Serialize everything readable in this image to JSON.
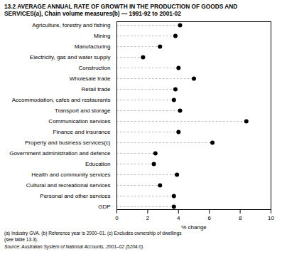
{
  "chart_data": {
    "type": "lollipop",
    "orientation": "horizontal",
    "title": "13.2  AVERAGE ANNUAL RATE OF GROWTH IN THE PRODUCTION OF GOODS AND",
    "subtitle": "SERVICES(a), Chain volume measures(b) — 1991-92 to 2001-02",
    "categories": [
      "Agriculture, forestry and fishing",
      "Mining",
      "Manufacturing",
      "Electricity, gas and water supply",
      "Construction",
      "Wholesale trade",
      "Retail trade",
      "Accommodation, cafes and restaurants",
      "Transport and storage",
      "Communication services",
      "Finance and insurance",
      "Property and business services(c)",
      "Government administration and defence",
      "Education",
      "Health and community services",
      "Cultural and recreational services",
      "Personal and other services",
      "GDP"
    ],
    "values": [
      4.1,
      3.8,
      2.8,
      1.7,
      4.0,
      5.0,
      3.8,
      3.7,
      4.1,
      8.4,
      4.0,
      6.2,
      2.5,
      2.4,
      3.9,
      2.8,
      3.7,
      3.7
    ],
    "color": "#000000",
    "xlabel": "% change",
    "xlim": [
      0,
      10
    ],
    "xticks": [
      0,
      2,
      4,
      6,
      8,
      10
    ],
    "grid": false,
    "annotations": [
      "(a)  Industry GVA.  (b)  Reference year is 2000–01.  (c)  Excludes ownership of dwellings",
      "(see table 13.3)."
    ],
    "source": "Source: Australian System of National Accounts, 2001–02 (5204.0)."
  }
}
